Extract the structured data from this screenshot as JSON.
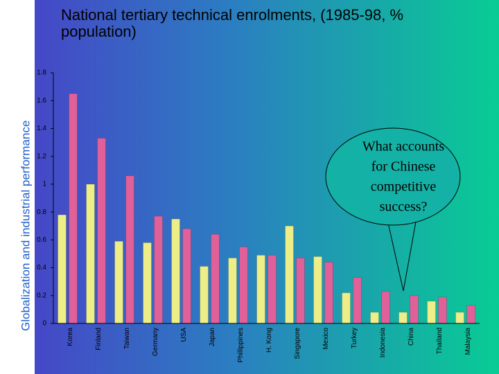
{
  "chart_data": {
    "type": "bar",
    "side_title": "Globalization and industrial performance",
    "title": "National tertiary technical enrolments, (1985-98, % population)",
    "annotation": [
      "What accounts",
      "for Chinese",
      "competitive",
      "success?"
    ],
    "categories": [
      "Korea",
      "Finland",
      "Taiwan",
      "Germany",
      "USA",
      "Japan",
      "Phillippines",
      "H. Kong",
      "Singapore",
      "Mexico",
      "Turkey",
      "Indonesia",
      "China",
      "Thailand",
      "Malaysia"
    ],
    "series": [
      {
        "color": "#eeee88",
        "values": [
          0.78,
          1.0,
          0.59,
          0.58,
          0.75,
          0.41,
          0.47,
          0.49,
          0.7,
          0.48,
          0.22,
          0.08,
          0.08,
          0.16,
          0.08
        ]
      },
      {
        "color": "#e0609a",
        "values": [
          1.65,
          1.33,
          1.06,
          0.77,
          0.68,
          0.64,
          0.55,
          0.49,
          0.47,
          0.44,
          0.33,
          0.23,
          0.2,
          0.19,
          0.13
        ]
      }
    ],
    "ylim": [
      0,
      1.8
    ],
    "yticks": [
      0,
      0.2,
      0.4,
      0.6,
      0.8,
      1,
      1.2,
      1.4,
      1.6,
      1.8
    ]
  }
}
